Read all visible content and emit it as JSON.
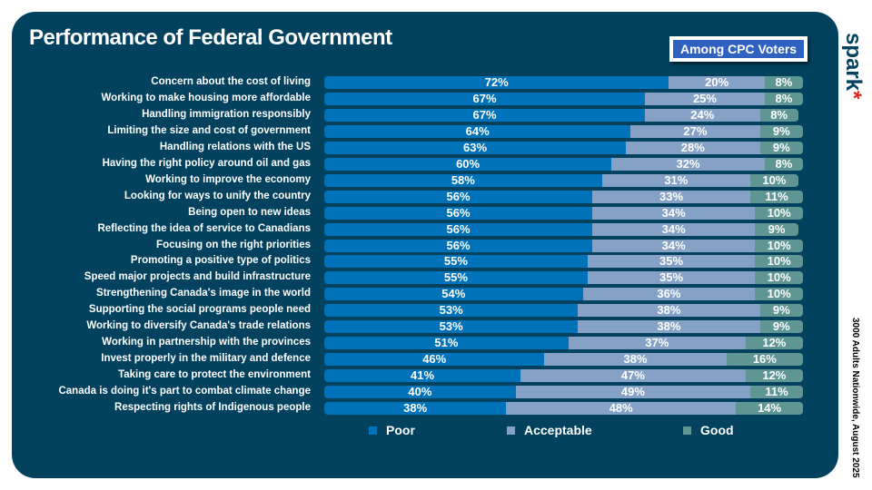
{
  "title": "Performance of Federal Government",
  "badge": "Among CPC Voters",
  "logo": "spark*",
  "note": "3000 Adults Nationwide, August 2025",
  "colors": {
    "Poor": "#0072b9",
    "Acceptable": "#85a2c6",
    "Good": "#5f9693",
    "background": "#02425f"
  },
  "chart_data": {
    "type": "bar",
    "stacked": true,
    "orientation": "horizontal",
    "title": "Performance of Federal Government",
    "categories": [
      "Concern about the cost of living",
      "Working to make housing more affordable",
      "Handling immigration responsibly",
      "Limiting the size and cost of government",
      "Handling relations with the US",
      "Having the right policy around oil and gas",
      "Working to improve the economy",
      "Looking for ways to unify the country",
      "Being open to new ideas",
      "Reflecting the idea of service to Canadians",
      "Focusing on the right priorities",
      "Promoting a positive type of politics",
      "Speed major projects and build infrastructure",
      "Strengthening Canada's image in the world",
      "Supporting the social programs people need",
      "Working to diversify Canada's trade relations",
      "Working in partnership with the provinces",
      "Invest properly in the military and defence",
      "Taking care to protect the environment",
      "Canada is doing it's part to combat climate change",
      "Respecting rights of Indigenous people"
    ],
    "series": [
      {
        "name": "Poor",
        "values": [
          72,
          67,
          67,
          64,
          63,
          60,
          58,
          56,
          56,
          56,
          56,
          55,
          55,
          54,
          53,
          53,
          51,
          46,
          41,
          40,
          38
        ]
      },
      {
        "name": "Acceptable",
        "values": [
          20,
          25,
          24,
          27,
          28,
          32,
          31,
          33,
          34,
          34,
          34,
          35,
          35,
          36,
          38,
          38,
          37,
          38,
          47,
          49,
          48
        ]
      },
      {
        "name": "Good",
        "values": [
          8,
          8,
          8,
          9,
          9,
          8,
          10,
          11,
          10,
          9,
          10,
          10,
          10,
          10,
          9,
          9,
          12,
          16,
          12,
          11,
          14
        ]
      }
    ],
    "legend": "bottom",
    "xlim": [
      0,
      100
    ]
  }
}
